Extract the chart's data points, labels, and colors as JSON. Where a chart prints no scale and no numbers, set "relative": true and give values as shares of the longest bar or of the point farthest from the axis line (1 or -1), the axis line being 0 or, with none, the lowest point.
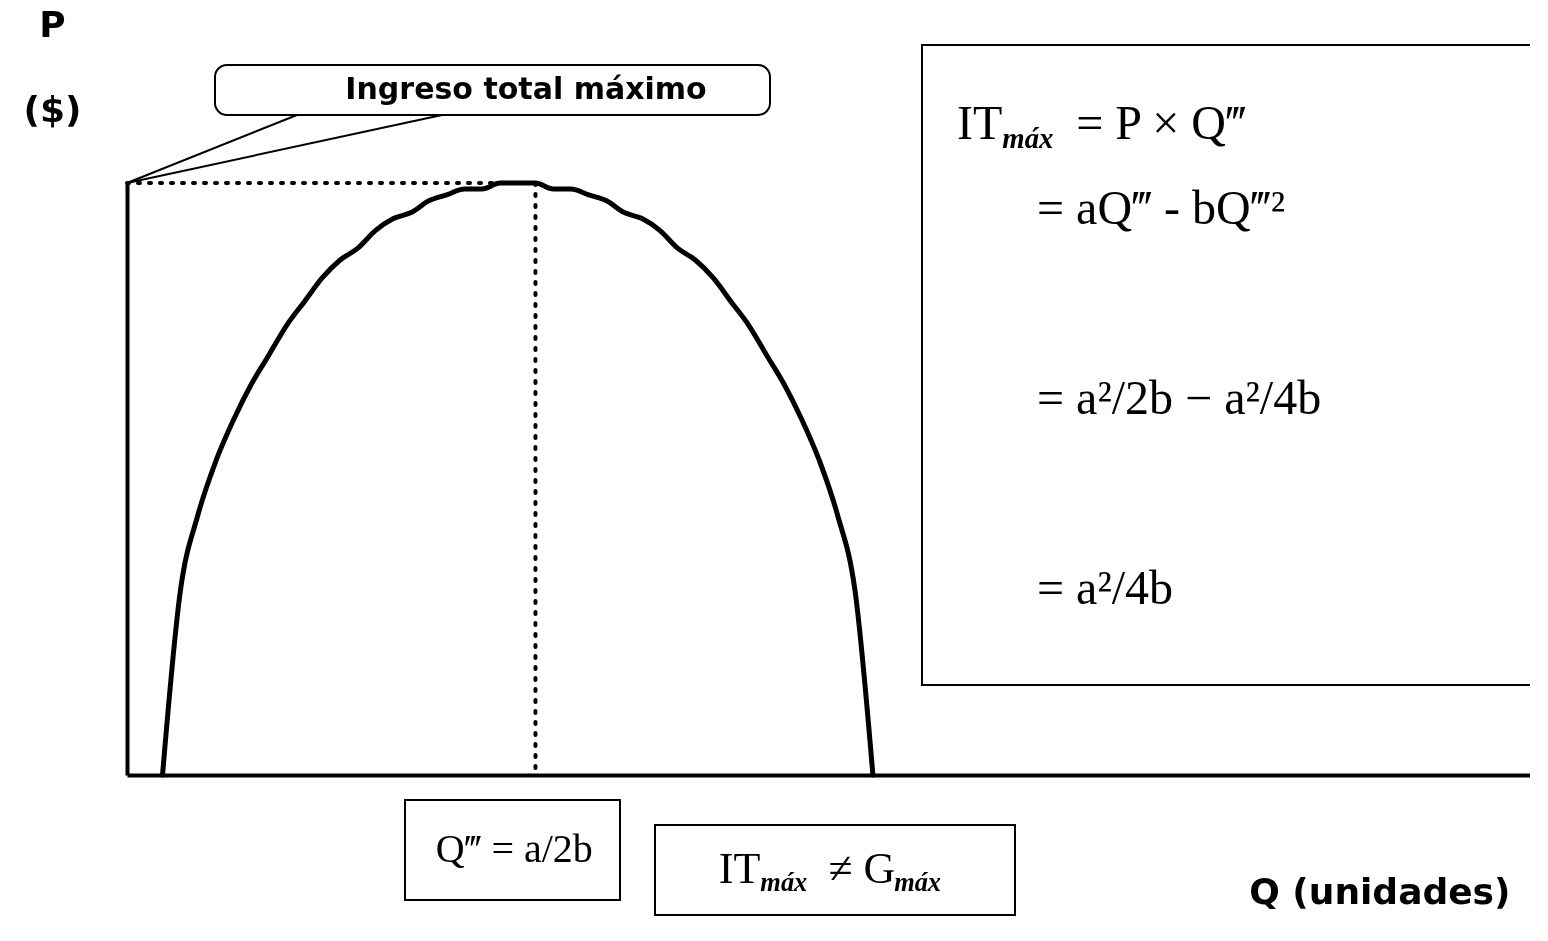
{
  "chart_data": {
    "type": "line",
    "relative": true,
    "xlabel": "Q (unidades)",
    "ylabel": "P ($)",
    "categories": [
      null,
      null,
      null,
      null,
      null,
      null,
      null,
      null,
      null,
      null,
      null,
      null,
      null,
      null,
      null,
      null,
      null,
      null,
      null,
      null,
      null,
      null,
      null,
      null,
      null,
      null,
      null,
      null,
      null,
      null,
      null,
      null,
      null,
      null,
      null,
      null,
      null,
      null,
      null,
      null,
      null,
      null,
      null,
      null,
      null,
      null,
      null,
      null,
      null,
      null,
      null,
      null,
      null,
      null,
      null,
      null,
      null,
      null,
      null,
      null,
      null,
      null,
      null,
      null,
      null,
      null,
      null,
      null,
      null,
      null,
      null,
      null,
      null,
      null,
      null,
      null,
      null,
      null,
      null,
      null
    ],
    "series": [
      {
        "color": "#000000",
        "line_style": "solid",
        "values": [
          null,
          null,
          0,
          0.31,
          0.44,
          0.53,
          0.6,
          0.66,
          0.71,
          0.76,
          0.8,
          0.84,
          0.87,
          0.89,
          0.92,
          0.94,
          0.95,
          0.97,
          0.98,
          0.99,
          0.99,
          1,
          1,
          1,
          0.99,
          0.99,
          0.98,
          0.97,
          0.95,
          0.94,
          0.92,
          0.89,
          0.87,
          0.84,
          0.8,
          0.76,
          0.71,
          0.66,
          0.6,
          0.53,
          0.44,
          0.31,
          0,
          null,
          null,
          null,
          null,
          null,
          null,
          null,
          null,
          null,
          null,
          null,
          null,
          null,
          null,
          null,
          null,
          null,
          null,
          null,
          null,
          null,
          null,
          null,
          null,
          null,
          null,
          null,
          null,
          null,
          null,
          null,
          null,
          null,
          null,
          null,
          null,
          null
        ]
      },
      {
        "color": "#000000",
        "line_style": "dotted",
        "values": [
          1,
          1,
          1,
          1,
          1,
          1,
          1,
          1,
          1,
          1,
          1,
          1,
          1,
          1,
          1,
          1,
          1,
          1,
          1,
          1,
          1,
          1,
          1,
          null,
          null,
          null,
          null,
          null,
          null,
          null,
          null,
          null,
          null,
          null,
          null,
          null,
          null,
          null,
          null,
          null,
          null,
          null,
          null,
          null,
          null,
          null,
          null,
          null,
          null,
          null,
          null,
          null,
          null,
          null,
          null,
          null,
          null,
          null,
          null,
          null,
          null,
          null,
          null,
          null,
          null,
          null,
          null,
          null,
          null,
          null,
          null,
          null,
          null,
          null,
          null,
          null,
          null,
          null,
          null,
          null
        ]
      }
    ],
    "grid": false,
    "annotations": [
      "Ingreso total máximo",
      "IT$_{máx}$ = P × Q‴",
      "= aQ‴ - bQ‴²",
      "= a²/2b − a²/4b",
      "= a²/4b",
      "IT$_{máx}$ ≠ G$_{máx}$",
      "Q‴ = a/2b"
    ]
  }
}
